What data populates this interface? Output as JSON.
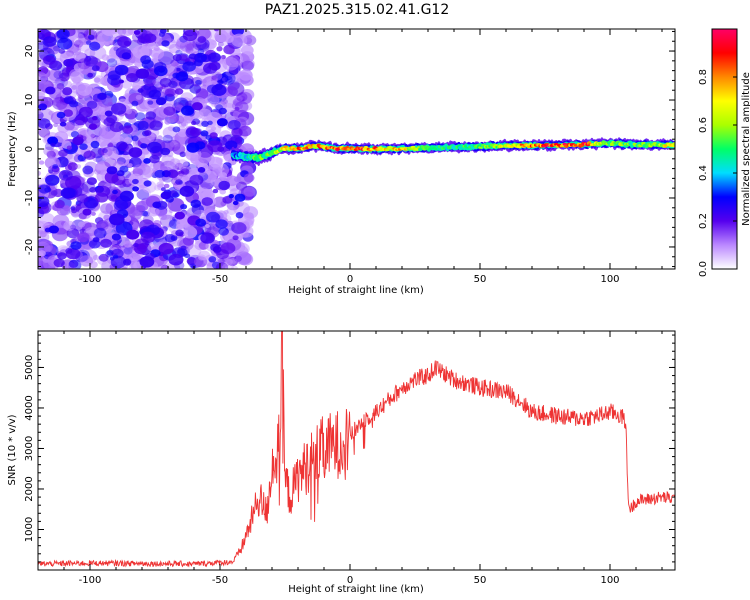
{
  "title": "PAZ1.2025.315.02.41.G12",
  "chart_data": [
    {
      "type": "heatmap",
      "name": "spectrogram",
      "xlabel": "Height of straight line (km)",
      "ylabel": "Frequency (Hz)",
      "xlim": [
        -120,
        125
      ],
      "ylim": [
        -24.5,
        24.5
      ],
      "xticks": [
        -100,
        -50,
        0,
        50,
        100
      ],
      "xtick_labels": [
        "-100",
        "-50",
        "0",
        "50",
        "100"
      ],
      "yticks": [
        -20,
        -10,
        0,
        10,
        20
      ],
      "ytick_labels": [
        "-20",
        "-10",
        "0",
        "10",
        "20"
      ],
      "noise_region_x": [
        -120,
        -42
      ],
      "signal_band": {
        "x": [
          -45,
          -40,
          -35,
          -30,
          -25,
          -20,
          -15,
          -10,
          -5,
          0,
          10,
          20,
          30,
          40,
          50,
          60,
          70,
          80,
          90,
          100,
          110,
          125
        ],
        "freq_hz": [
          -1.2,
          -1.6,
          -1.8,
          -0.8,
          0.2,
          0.1,
          0.6,
          0.5,
          0.1,
          0.1,
          0.0,
          0.1,
          0.2,
          0.4,
          0.5,
          0.7,
          0.7,
          0.8,
          0.9,
          1.2,
          0.9,
          0.8
        ],
        "amplitude": [
          0.35,
          0.45,
          0.6,
          0.55,
          0.75,
          0.9,
          0.8,
          0.85,
          0.9,
          0.95,
          0.85,
          0.75,
          0.5,
          0.5,
          0.55,
          0.7,
          0.85,
          0.95,
          0.9,
          0.6,
          0.55,
          0.8
        ]
      },
      "colorbar": {
        "label": "Normalized spectral amplitude",
        "range": [
          0,
          1
        ],
        "ticks": [
          0.0,
          0.2,
          0.4,
          0.6,
          0.8
        ],
        "tick_labels": [
          "0.0",
          "0.2",
          "0.4",
          "0.6",
          "0.8"
        ],
        "colors": [
          "#ffffff",
          "#bb88ff",
          "#5500ee",
          "#0000ff",
          "#00ddff",
          "#00ff66",
          "#aaff00",
          "#ffff00",
          "#ff8800",
          "#ff0000",
          "#ff0066"
        ]
      }
    },
    {
      "type": "line",
      "name": "snr",
      "xlabel": "Height of straight line (km)",
      "ylabel": "SNR (10 * v/v)",
      "xlim": [
        -120,
        125
      ],
      "ylim": [
        0,
        5900
      ],
      "xticks": [
        -100,
        -50,
        0,
        50,
        100
      ],
      "xtick_labels": [
        "-100",
        "-50",
        "0",
        "50",
        "100"
      ],
      "yticks": [
        1000,
        2000,
        3000,
        4000,
        5000
      ],
      "ytick_labels": [
        "1000",
        "2000",
        "3000",
        "4000",
        "5000"
      ],
      "color": "#ee3333",
      "x": [
        -120,
        -100,
        -80,
        -60,
        -45,
        -42,
        -38,
        -35,
        -32,
        -30,
        -28,
        -27,
        -26,
        -25,
        -23,
        -20,
        -15,
        -10,
        -5,
        0,
        5,
        10,
        15,
        20,
        25,
        30,
        33,
        35,
        40,
        45,
        50,
        55,
        60,
        65,
        70,
        75,
        80,
        85,
        90,
        95,
        100,
        103,
        106,
        107,
        108,
        110,
        115,
        120,
        125
      ],
      "values": [
        150,
        170,
        160,
        150,
        200,
        500,
        1200,
        1800,
        1400,
        2600,
        2800,
        3200,
        5300,
        2200,
        1800,
        2300,
        2700,
        3000,
        3100,
        3300,
        3700,
        3900,
        4200,
        4500,
        4700,
        4800,
        5000,
        4900,
        4700,
        4600,
        4500,
        4450,
        4400,
        4200,
        3900,
        3850,
        3800,
        3750,
        3750,
        3800,
        3900,
        3850,
        3700,
        1700,
        1500,
        1700,
        1750,
        1800,
        1750
      ]
    }
  ]
}
